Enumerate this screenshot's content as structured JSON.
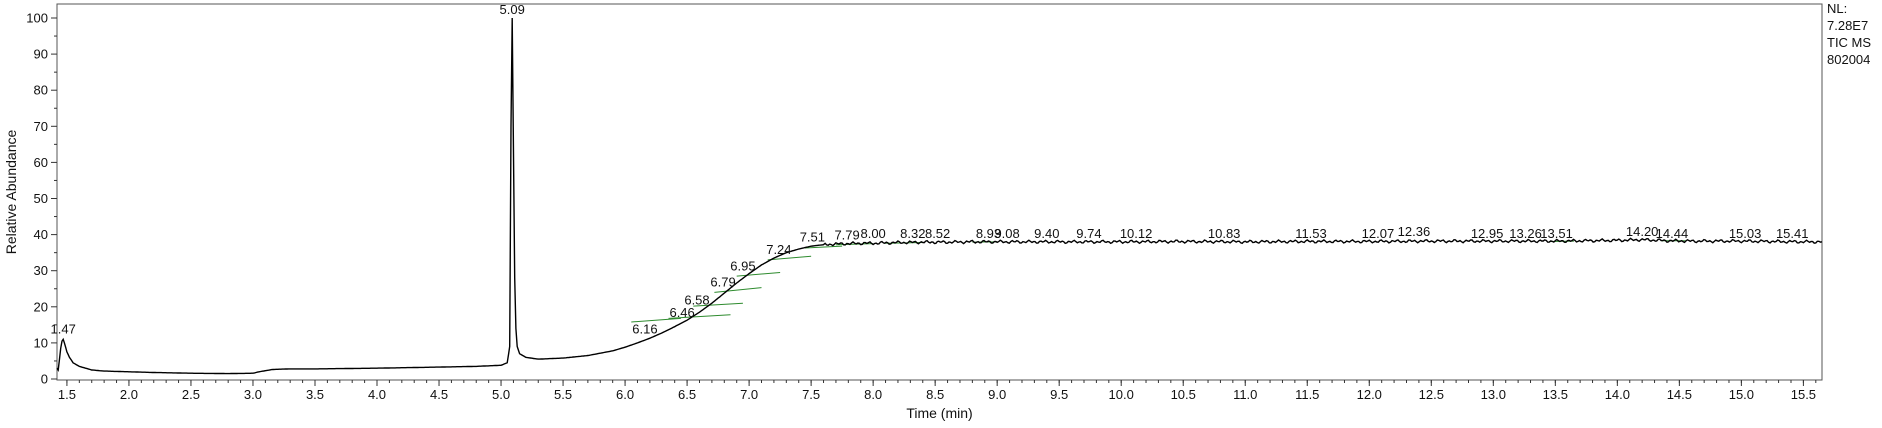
{
  "chart_data": {
    "type": "line",
    "xlabel": "Time (min)",
    "ylabel": "Relative Abundance",
    "xlim": [
      1.42,
      15.65
    ],
    "ylim": [
      0,
      100
    ],
    "x_ticks": [
      "1.5",
      "2.0",
      "2.5",
      "3.0",
      "3.5",
      "4.0",
      "4.5",
      "5.0",
      "5.5",
      "6.0",
      "6.5",
      "7.0",
      "7.5",
      "8.0",
      "8.5",
      "9.0",
      "9.5",
      "10.0",
      "10.5",
      "11.0",
      "11.5",
      "12.0",
      "12.5",
      "13.0",
      "13.5",
      "14.0",
      "14.5",
      "15.0",
      "15.5"
    ],
    "y_ticks": [
      "0",
      "10",
      "20",
      "30",
      "40",
      "50",
      "60",
      "70",
      "80",
      "90",
      "100"
    ],
    "info_lines": [
      "NL:",
      "7.28E7",
      "TIC  MS",
      "802004"
    ],
    "peak_labels": [
      {
        "x": 1.47,
        "y": 11.5,
        "text": "1.47"
      },
      {
        "x": 5.09,
        "y": 100,
        "text": "5.09"
      },
      {
        "x": 6.16,
        "y": 11.5,
        "text": "6.16"
      },
      {
        "x": 6.46,
        "y": 16,
        "text": "6.46"
      },
      {
        "x": 6.58,
        "y": 19.5,
        "text": "6.58"
      },
      {
        "x": 6.79,
        "y": 24.5,
        "text": "6.79"
      },
      {
        "x": 6.95,
        "y": 29,
        "text": "6.95"
      },
      {
        "x": 7.24,
        "y": 33.5,
        "text": "7.24"
      },
      {
        "x": 7.51,
        "y": 37,
        "text": "7.51"
      },
      {
        "x": 7.79,
        "y": 37.5,
        "text": "7.79"
      },
      {
        "x": 8.0,
        "y": 38,
        "text": "8.00"
      },
      {
        "x": 8.32,
        "y": 38,
        "text": "8.32"
      },
      {
        "x": 8.52,
        "y": 38,
        "text": "8.52"
      },
      {
        "x": 8.93,
        "y": 38,
        "text": "8.93"
      },
      {
        "x": 9.08,
        "y": 38,
        "text": "9.08"
      },
      {
        "x": 9.4,
        "y": 38,
        "text": "9.40"
      },
      {
        "x": 9.74,
        "y": 38,
        "text": "9.74"
      },
      {
        "x": 10.12,
        "y": 38,
        "text": "10.12"
      },
      {
        "x": 10.83,
        "y": 38,
        "text": "10.83"
      },
      {
        "x": 11.53,
        "y": 38,
        "text": "11.53"
      },
      {
        "x": 12.07,
        "y": 38,
        "text": "12.07"
      },
      {
        "x": 12.36,
        "y": 38.5,
        "text": "12.36"
      },
      {
        "x": 12.95,
        "y": 38,
        "text": "12.95"
      },
      {
        "x": 13.26,
        "y": 38,
        "text": "13.26"
      },
      {
        "x": 13.51,
        "y": 38,
        "text": "13.51"
      },
      {
        "x": 14.2,
        "y": 38.5,
        "text": "14.20"
      },
      {
        "x": 14.44,
        "y": 38,
        "text": "14.44"
      },
      {
        "x": 15.03,
        "y": 38,
        "text": "15.03"
      },
      {
        "x": 15.41,
        "y": 38,
        "text": "15.41"
      }
    ],
    "baselines": [
      [
        6.05,
        15.8,
        6.45,
        16.8
      ],
      [
        6.35,
        16.8,
        6.85,
        17.8
      ],
      [
        6.55,
        20.2,
        6.95,
        21.0
      ],
      [
        6.72,
        24.0,
        7.1,
        25.3
      ],
      [
        6.9,
        28.5,
        7.25,
        29.5
      ],
      [
        7.15,
        33.0,
        7.5,
        34.0
      ],
      [
        7.45,
        36.3,
        7.75,
        36.8
      ],
      [
        7.7,
        37.2,
        8.0,
        37.5
      ],
      [
        8.1,
        37.6,
        8.4,
        37.8
      ],
      [
        8.8,
        37.9,
        9.0,
        38.0
      ],
      [
        13.45,
        38.1,
        13.65,
        38.2
      ],
      [
        14.35,
        38.3,
        14.55,
        38.3
      ]
    ],
    "series": [
      {
        "x": [
          1.42,
          1.43,
          1.44,
          1.45,
          1.46,
          1.47,
          1.48,
          1.5,
          1.52,
          1.55,
          1.6,
          1.7,
          1.8,
          2.0,
          2.2,
          2.5,
          2.8,
          3.0,
          3.05,
          3.1,
          3.15,
          3.2,
          3.3,
          3.5,
          4.0,
          4.5,
          4.8,
          5.0,
          5.05,
          5.07,
          5.08,
          5.09,
          5.1,
          5.11,
          5.12,
          5.13,
          5.15,
          5.2,
          5.3,
          5.5,
          5.7,
          5.9,
          6.0,
          6.1,
          6.2,
          6.3,
          6.4,
          6.5,
          6.6,
          6.7,
          6.8,
          6.9,
          7.0,
          7.1,
          7.2,
          7.3,
          7.4,
          7.5,
          7.6,
          7.7,
          7.8,
          7.9,
          8.0,
          8.2,
          8.4,
          8.6,
          8.8,
          9.0,
          9.5,
          10.0,
          10.5,
          11.0,
          11.5,
          12.0,
          12.5,
          13.0,
          13.5,
          14.0,
          14.2,
          14.4,
          14.6,
          15.0,
          15.5,
          15.65
        ],
        "y": [
          3.0,
          2.5,
          5.5,
          8.5,
          10.5,
          11.0,
          10.0,
          7.5,
          6.0,
          4.5,
          3.5,
          2.5,
          2.2,
          2.0,
          1.8,
          1.6,
          1.5,
          1.6,
          2.0,
          2.3,
          2.6,
          2.7,
          2.8,
          2.8,
          3.0,
          3.3,
          3.5,
          3.8,
          4.5,
          9.0,
          70.0,
          100.0,
          65.0,
          28.0,
          14.0,
          9.0,
          7.0,
          6.0,
          5.5,
          5.8,
          6.5,
          7.8,
          8.8,
          10.0,
          11.3,
          12.8,
          14.5,
          16.3,
          18.5,
          21.0,
          23.8,
          26.6,
          29.2,
          31.6,
          33.5,
          35.0,
          36.0,
          36.8,
          37.2,
          37.4,
          37.5,
          37.6,
          37.6,
          37.8,
          37.9,
          37.9,
          38.0,
          38.0,
          38.0,
          38.0,
          38.1,
          38.0,
          38.1,
          38.1,
          38.2,
          38.2,
          38.2,
          38.4,
          38.6,
          38.3,
          38.2,
          38.2,
          38.0,
          38.0
        ]
      }
    ]
  }
}
